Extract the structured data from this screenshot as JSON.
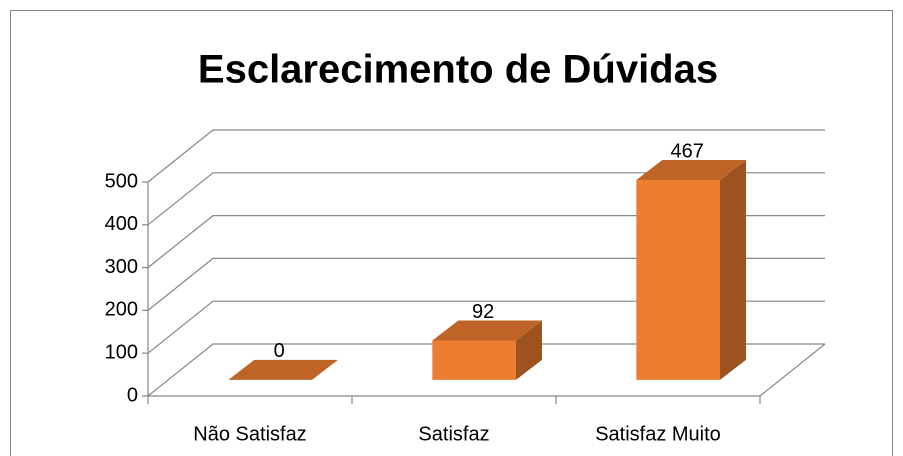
{
  "chart_data": {
    "type": "bar3d",
    "title": "Esclarecimento de Dúvidas",
    "categories": [
      "Não Satisfaz",
      "Satisfaz",
      "Satisfaz Muito"
    ],
    "values": [
      0,
      92,
      467
    ],
    "color": "#ed7d31",
    "ylim": [
      0,
      500
    ],
    "yticks": [
      0,
      100,
      200,
      300,
      400,
      500
    ],
    "grid": true
  }
}
